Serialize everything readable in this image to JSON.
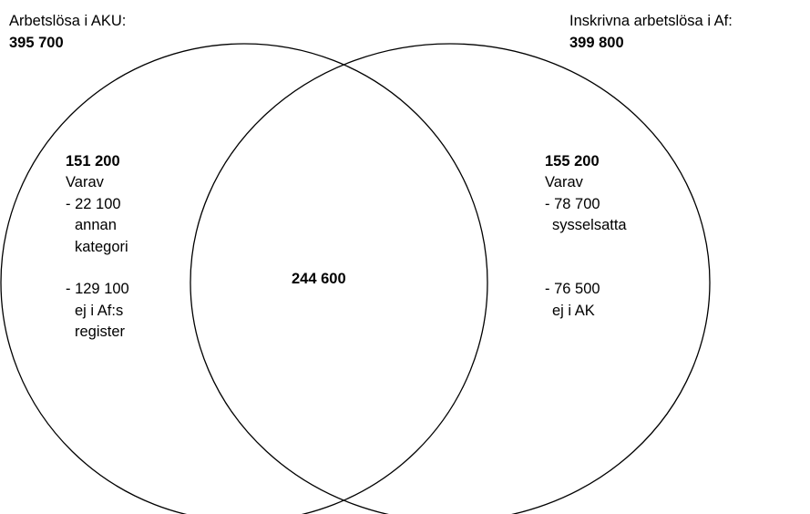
{
  "sets": [
    {
      "label": "Arbetslösa i AKU:",
      "total": "395 700"
    },
    {
      "label": "Inskrivna arbetslösa i Af:",
      "total": "399 800"
    }
  ],
  "regions": {
    "left": {
      "value": "151 200",
      "breakdown_title": "Varav",
      "items": [
        {
          "value": "- 22 100",
          "lines": [
            "annan",
            "kategori"
          ]
        },
        {
          "value": "- 129 100",
          "lines": [
            "ej i Af:s",
            "register"
          ]
        }
      ]
    },
    "overlap": {
      "value": "244 600"
    },
    "right": {
      "value": "155 200",
      "breakdown_title": "Varav",
      "items": [
        {
          "value": "- 78 700",
          "lines": [
            "sysselsatta"
          ]
        },
        {
          "value": "- 76 500",
          "lines": [
            "ej i AK"
          ]
        }
      ]
    }
  }
}
